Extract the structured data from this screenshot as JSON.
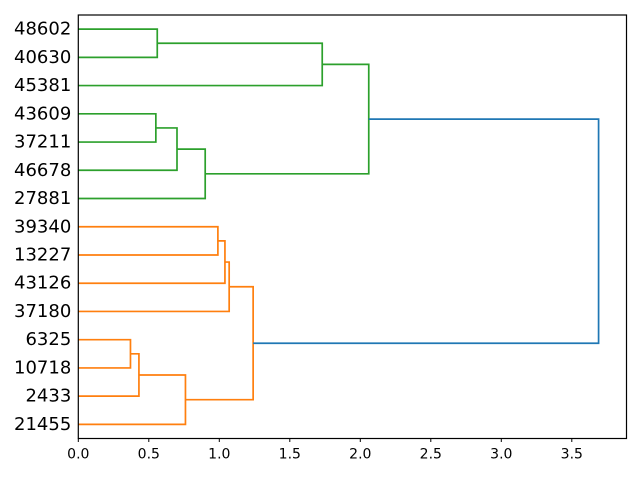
{
  "chart_data": {
    "type": "dendrogram",
    "title": "",
    "xlabel": "",
    "ylabel": "",
    "orientation": "right",
    "grid": false,
    "legend": null,
    "xlim": [
      0,
      3.888
    ],
    "x_ticks": [
      {
        "value": 0.0,
        "label": "0.0"
      },
      {
        "value": 0.5,
        "label": "0.5"
      },
      {
        "value": 1.0,
        "label": "1.0"
      },
      {
        "value": 1.5,
        "label": "1.5"
      },
      {
        "value": 2.0,
        "label": "2.0"
      },
      {
        "value": 2.5,
        "label": "2.5"
      },
      {
        "value": 3.0,
        "label": "3.0"
      },
      {
        "value": 3.5,
        "label": "3.5"
      }
    ],
    "leaves": [
      "48602",
      "40630",
      "45381",
      "43609",
      "37211",
      "46678",
      "27881",
      "39340",
      "13227",
      "43126",
      "37180",
      "6325",
      "10718",
      "2433",
      "21455"
    ],
    "links": [
      {
        "id": "A",
        "children": [
          "48602",
          "40630"
        ],
        "height": 0.56,
        "color": "green"
      },
      {
        "id": "C",
        "children": [
          "43609",
          "37211"
        ],
        "height": 0.55,
        "color": "green"
      },
      {
        "id": "D",
        "children": [
          "C",
          "46678"
        ],
        "height": 0.7,
        "color": "green"
      },
      {
        "id": "E",
        "children": [
          "D",
          "27881"
        ],
        "height": 0.9,
        "color": "green"
      },
      {
        "id": "B",
        "children": [
          "A",
          "45381"
        ],
        "height": 1.73,
        "color": "green"
      },
      {
        "id": "F",
        "children": [
          "B",
          "E"
        ],
        "height": 2.06,
        "color": "green"
      },
      {
        "id": "G",
        "children": [
          "39340",
          "13227"
        ],
        "height": 0.99,
        "color": "orange"
      },
      {
        "id": "H",
        "children": [
          "G",
          "43126"
        ],
        "height": 1.04,
        "color": "orange"
      },
      {
        "id": "I",
        "children": [
          "H",
          "37180"
        ],
        "height": 1.07,
        "color": "orange"
      },
      {
        "id": "J",
        "children": [
          "6325",
          "10718"
        ],
        "height": 0.37,
        "color": "orange"
      },
      {
        "id": "K",
        "children": [
          "J",
          "2433"
        ],
        "height": 0.43,
        "color": "orange"
      },
      {
        "id": "L",
        "children": [
          "K",
          "21455"
        ],
        "height": 0.76,
        "color": "orange"
      },
      {
        "id": "M",
        "children": [
          "I",
          "L"
        ],
        "height": 1.24,
        "color": "orange"
      },
      {
        "id": "ROOT",
        "children": [
          "F",
          "M"
        ],
        "height": 3.69,
        "color": "blue"
      }
    ],
    "colors": {
      "green": "#2ca02c",
      "orange": "#ff7f0e",
      "blue": "#1f77b4",
      "axis": "#000000",
      "background": "#ffffff"
    },
    "line_width": 1.7
  }
}
